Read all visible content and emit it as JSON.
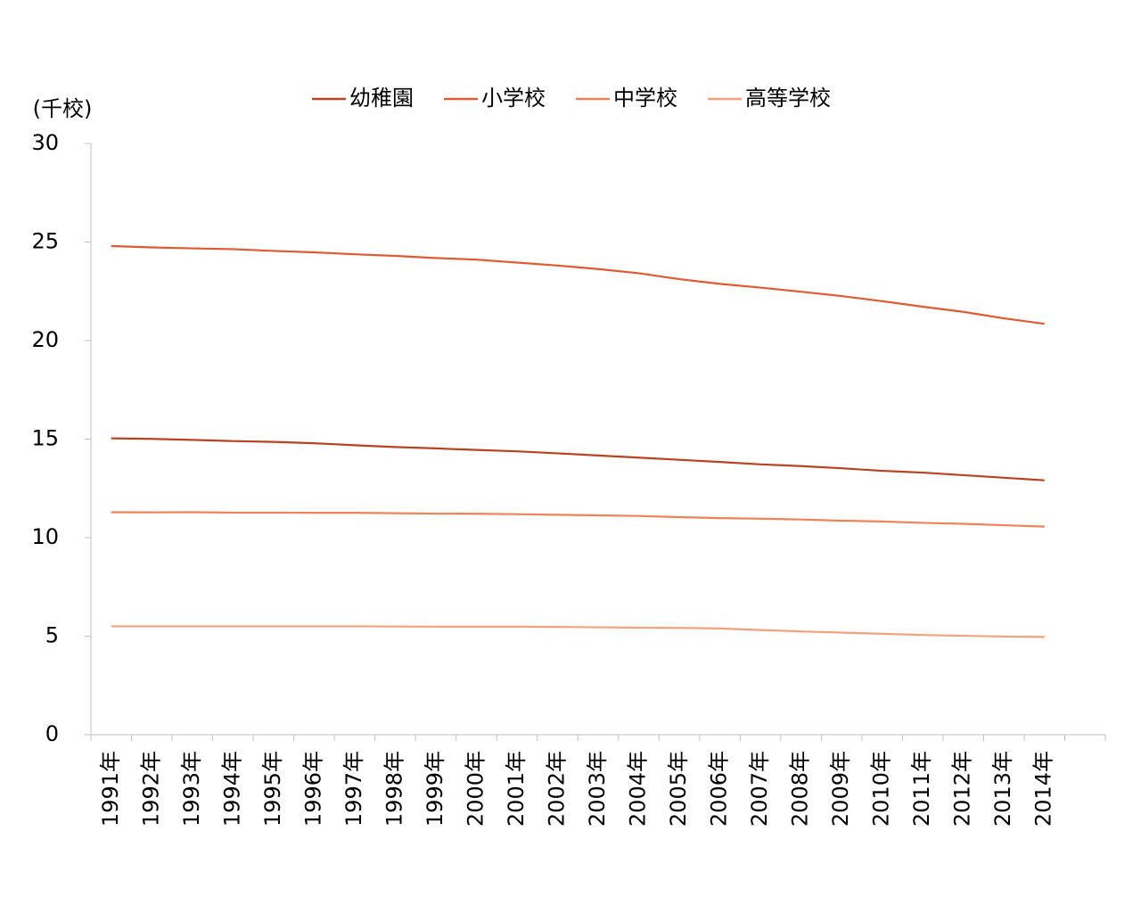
{
  "chart_data": {
    "type": "line",
    "y_label": "(千校)",
    "categories": [
      "1991年",
      "1992年",
      "1993年",
      "1994年",
      "1995年",
      "1996年",
      "1997年",
      "1998年",
      "1999年",
      "2000年",
      "2001年",
      "2002年",
      "2003年",
      "2004年",
      "2005年",
      "2006年",
      "2007年",
      "2008年",
      "2009年",
      "2010年",
      "2011年",
      "2012年",
      "2013年",
      "2014年",
      null
    ],
    "series": [
      {
        "name": "幼稚園",
        "color": "#b9421f",
        "values": [
          15.04,
          15.01,
          14.96,
          14.9,
          14.86,
          14.79,
          14.69,
          14.6,
          14.53,
          14.45,
          14.38,
          14.28,
          14.17,
          14.06,
          13.95,
          13.84,
          13.72,
          13.63,
          13.52,
          13.39,
          13.3,
          13.17,
          13.04,
          12.91,
          null
        ]
      },
      {
        "name": "小学校",
        "color": "#e05a30",
        "values": [
          24.8,
          24.73,
          24.68,
          24.64,
          24.55,
          24.48,
          24.38,
          24.3,
          24.19,
          24.11,
          23.96,
          23.81,
          23.63,
          23.42,
          23.12,
          22.88,
          22.69,
          22.48,
          22.26,
          22.0,
          21.72,
          21.46,
          21.13,
          20.85,
          null
        ]
      },
      {
        "name": "中学校",
        "color": "#f08258",
        "values": [
          11.29,
          11.28,
          11.29,
          11.27,
          11.27,
          11.26,
          11.26,
          11.24,
          11.22,
          11.21,
          11.19,
          11.16,
          11.13,
          11.1,
          11.04,
          10.99,
          10.96,
          10.92,
          10.86,
          10.82,
          10.75,
          10.7,
          10.63,
          10.56,
          null
        ]
      },
      {
        "name": "高等学校",
        "color": "#f5a27c",
        "values": [
          5.5,
          5.5,
          5.5,
          5.5,
          5.5,
          5.5,
          5.5,
          5.49,
          5.48,
          5.48,
          5.48,
          5.47,
          5.45,
          5.43,
          5.42,
          5.39,
          5.31,
          5.24,
          5.18,
          5.12,
          5.06,
          5.02,
          4.98,
          4.96,
          null
        ]
      }
    ],
    "ylim": [
      0,
      30
    ],
    "yticks": [
      0,
      5,
      10,
      15,
      20,
      25,
      30
    ],
    "grid": false,
    "legend": "top"
  }
}
